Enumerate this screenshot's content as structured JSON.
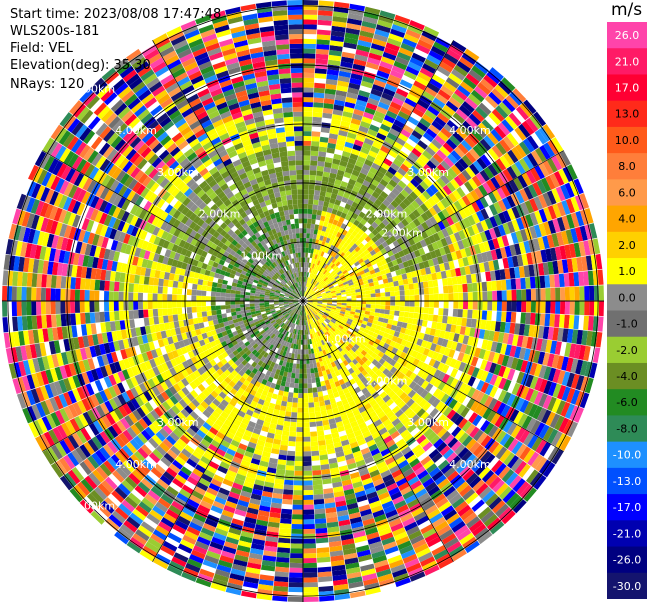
{
  "header": {
    "start_time": "Start time: 2023/08/08 17:47:48",
    "instrument": "WLS200s-181",
    "field": "Field: VEL",
    "elevation": "Elevation(deg): 35.30",
    "nrays": "NRays: 120"
  },
  "ppi": {
    "nrays": 120,
    "range_rings_km": [
      1.0,
      2.0,
      3.0,
      4.0,
      5.0
    ],
    "max_range_km": 5.1,
    "ring_labels": [
      {
        "text": "1.00km",
        "quadrant": "nw",
        "ring_km": 1.0
      },
      {
        "text": "2.00km",
        "quadrant": "nw",
        "ring_km": 2.0
      },
      {
        "text": "3.00km",
        "quadrant": "nw",
        "ring_km": 3.0
      },
      {
        "text": "4.00km",
        "quadrant": "nw",
        "ring_km": 4.0
      },
      {
        "text": "5.00km",
        "quadrant": "nw",
        "ring_km": 5.0
      },
      {
        "text": "2.00km",
        "quadrant": "ne",
        "ring_km": 2.0
      },
      {
        "text": "2.00km",
        "quadrant": "ne",
        "ring_km": 2.0
      },
      {
        "text": "3.00km",
        "quadrant": "ne",
        "ring_km": 3.0
      },
      {
        "text": "4.00km",
        "quadrant": "ne",
        "ring_km": 4.0
      },
      {
        "text": "1.00km",
        "quadrant": "se",
        "ring_km": 1.0
      },
      {
        "text": "2.00km",
        "quadrant": "se",
        "ring_km": 2.0
      },
      {
        "text": "3.00km",
        "quadrant": "se",
        "ring_km": 3.0
      },
      {
        "text": "4.00km",
        "quadrant": "se",
        "ring_km": 4.0
      },
      {
        "text": "3.00km",
        "quadrant": "sw",
        "ring_km": 3.0
      },
      {
        "text": "4.00km",
        "quadrant": "sw",
        "ring_km": 4.0
      },
      {
        "text": "5.00km",
        "quadrant": "sw",
        "ring_km": 5.0
      }
    ]
  },
  "colorbar": {
    "unit": "m/s",
    "ticks": [
      "26.0",
      "21.0",
      "17.0",
      "13.0",
      "10.0",
      "8.0",
      "6.0",
      "4.0",
      "2.0",
      "1.0",
      "0.0",
      "-1.0",
      "-2.0",
      "-4.0",
      "-6.0",
      "-8.0",
      "-10.0",
      "-13.0",
      "-17.0",
      "-21.0",
      "-26.0",
      "-30.0"
    ],
    "colors": [
      "#ff44aa",
      "#ff1a66",
      "#ff0033",
      "#ff2a1a",
      "#ff5a1a",
      "#ff7e3a",
      "#ff9a4a",
      "#ffa500",
      "#ffd000",
      "#ffff00",
      "#8c8c8c",
      "#707070",
      "#9acd32",
      "#6b8e23",
      "#228b22",
      "#2e8b57",
      "#1e90ff",
      "#0050ff",
      "#0000ff",
      "#0000b0",
      "#000080",
      "#14146e"
    ]
  }
}
